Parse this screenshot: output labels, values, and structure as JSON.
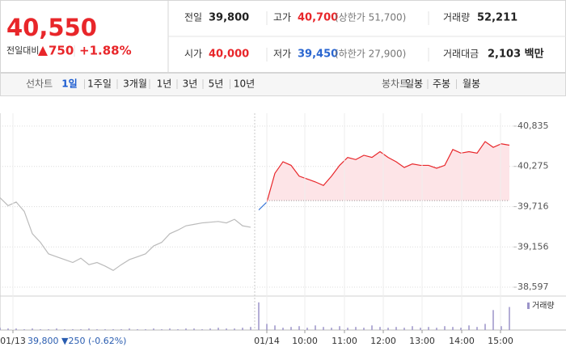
{
  "header": {
    "price": "40,550",
    "change_label": "전일대비",
    "change": "750",
    "change_pct": "+1.88%"
  },
  "quote": {
    "rows": [
      [
        {
          "label": "전일",
          "value": "39,800"
        },
        {
          "label": "고가",
          "value": "40,700",
          "note": "(상한가 51,700)"
        },
        {
          "label": "거래량",
          "value": "52,211"
        }
      ],
      [
        {
          "label": "시가",
          "value": "40,000"
        },
        {
          "label": "저가",
          "value": "39,450",
          "note": "(하한가 27,900)"
        },
        {
          "label": "거래대금",
          "value": "2,103 백만"
        }
      ]
    ]
  },
  "toolbar": {
    "line_chart": "선차트",
    "periods": [
      "1일",
      "1주일",
      "3개월",
      "1년",
      "3년",
      "5년",
      "10년"
    ],
    "candle_chart": "봉차트",
    "candles": [
      "일봉",
      "주봉",
      "월봉"
    ]
  },
  "chart_data": [
    {
      "type": "line",
      "x": [
        0,
        1,
        2,
        3,
        4,
        5,
        6,
        7,
        8,
        9,
        10,
        11,
        12,
        13,
        14,
        15,
        16,
        17,
        18,
        19,
        20,
        21,
        22,
        23,
        24,
        25,
        26,
        27,
        28,
        29,
        30,
        31,
        32,
        33,
        34,
        35,
        36,
        37,
        38,
        39,
        40,
        41,
        42,
        43,
        44,
        45,
        46,
        47,
        48,
        49,
        50,
        51,
        52,
        53,
        54,
        55,
        56,
        57,
        58,
        59,
        60,
        61,
        62,
        63
      ],
      "xlim": [
        0,
        63.5
      ],
      "ylim": [
        38485,
        41014
      ],
      "yticks": [
        {
          "value": 40835,
          "label": "40,835"
        },
        {
          "value": 40275,
          "label": "40,275"
        },
        {
          "value": 39716,
          "label": "39,716"
        },
        {
          "value": 39156,
          "label": "39,156"
        },
        {
          "value": 38597,
          "label": "38,597"
        }
      ],
      "grid": true,
      "baseline": 39800,
      "series": [
        {
          "color": "#bbbbbb",
          "values": [
            39840,
            39730,
            39780,
            39650,
            39340,
            39220,
            39060,
            39020,
            38980,
            38940,
            39000,
            38910,
            38940,
            38890,
            38830,
            38910,
            38980,
            39020,
            39060,
            39170,
            39220,
            39340,
            39390,
            39450,
            39470,
            39490,
            39500,
            39510,
            39490,
            39540,
            39450,
            39430,
            null,
            null,
            null,
            null,
            null,
            null,
            null,
            null,
            null,
            null,
            null,
            null,
            null,
            null,
            null,
            null,
            null,
            null,
            null,
            null,
            null,
            null,
            null,
            null,
            null,
            null,
            null,
            null,
            null,
            null,
            null,
            null
          ]
        },
        {
          "color": "#3a77d8",
          "values": [
            null,
            null,
            null,
            null,
            null,
            null,
            null,
            null,
            null,
            null,
            null,
            null,
            null,
            null,
            null,
            null,
            null,
            null,
            null,
            null,
            null,
            null,
            null,
            null,
            null,
            null,
            null,
            null,
            null,
            null,
            null,
            null,
            39670,
            39780,
            null,
            null,
            null,
            null,
            null,
            null,
            null,
            null,
            null,
            null,
            null,
            null,
            null,
            null,
            null,
            null,
            null,
            null,
            null,
            null,
            null,
            null,
            null,
            null,
            null,
            null,
            null,
            null,
            null,
            null
          ]
        },
        {
          "color": "#e8262a",
          "fill": "#fde4e7",
          "values": [
            null,
            null,
            null,
            null,
            null,
            null,
            null,
            null,
            null,
            null,
            null,
            null,
            null,
            null,
            null,
            null,
            null,
            null,
            null,
            null,
            null,
            null,
            null,
            null,
            null,
            null,
            null,
            null,
            null,
            null,
            null,
            null,
            null,
            39780,
            40180,
            40340,
            40290,
            40140,
            40100,
            40060,
            40010,
            40140,
            40290,
            40400,
            40370,
            40430,
            40400,
            40480,
            40400,
            40340,
            40260,
            40310,
            40290,
            40290,
            40250,
            40290,
            40510,
            40460,
            40480,
            40460,
            40620,
            40540,
            40590,
            40570
          ]
        }
      ]
    },
    {
      "type": "bar",
      "x": [
        0,
        1,
        2,
        3,
        4,
        5,
        6,
        7,
        8,
        9,
        10,
        11,
        12,
        13,
        14,
        15,
        16,
        17,
        18,
        19,
        20,
        21,
        22,
        23,
        24,
        25,
        26,
        27,
        28,
        29,
        30,
        31,
        32,
        33,
        34,
        35,
        36,
        37,
        38,
        39,
        40,
        41,
        42,
        43,
        44,
        45,
        46,
        47,
        48,
        49,
        50,
        51,
        52,
        53,
        54,
        55,
        56,
        57,
        58,
        59,
        60,
        61,
        62,
        63
      ],
      "xlim": [
        0,
        63.5
      ],
      "ylim": [
        0,
        40
      ],
      "xticks": [
        {
          "value": 1.6,
          "label": "01/13"
        },
        {
          "value": 33,
          "label": "01/14"
        },
        {
          "value": 37.7,
          "label": "10:00"
        },
        {
          "value": 42.6,
          "label": "11:00"
        },
        {
          "value": 47.4,
          "label": "12:00"
        },
        {
          "value": 52.2,
          "label": "13:00"
        },
        {
          "value": 57.1,
          "label": "14:00"
        },
        {
          "value": 61.9,
          "label": "15:00"
        }
      ],
      "grid": true,
      "annotation": "39,800 ▼250 (-0.62%)",
      "legend": "top-right",
      "series": [
        {
          "name": "거래량",
          "color": "#9b94c9",
          "values": [
            3,
            2,
            2,
            1,
            2,
            1,
            1,
            2,
            1,
            1,
            1,
            2,
            1,
            1,
            1,
            1,
            2,
            1,
            1,
            2,
            1,
            2,
            1,
            2,
            2,
            1,
            2,
            3,
            2,
            2,
            3,
            4,
            36,
            8,
            6,
            3,
            4,
            5,
            3,
            6,
            4,
            3,
            5,
            3,
            4,
            3,
            6,
            4,
            3,
            4,
            3,
            5,
            3,
            4,
            3,
            5,
            4,
            3,
            6,
            4,
            8,
            26,
            5,
            30
          ]
        }
      ]
    }
  ]
}
